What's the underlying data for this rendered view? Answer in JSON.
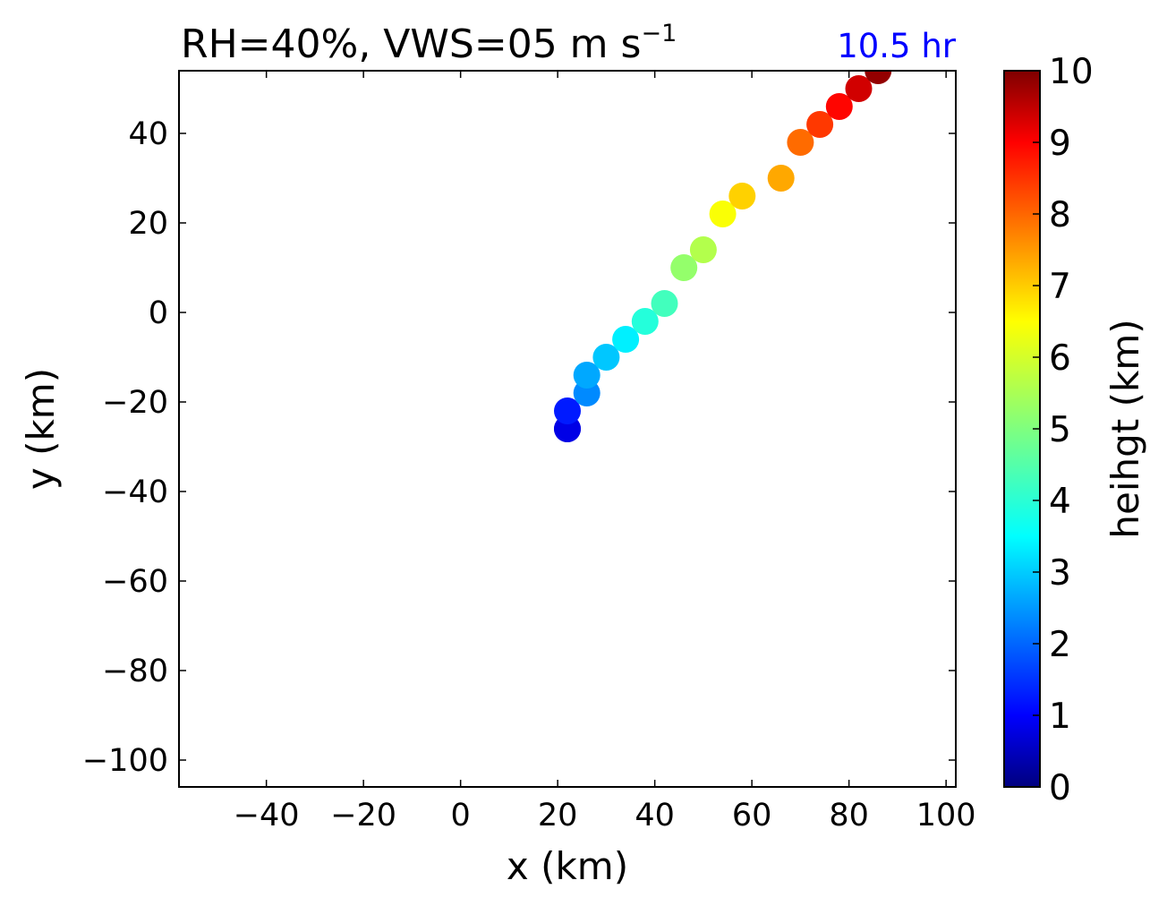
{
  "chart_data": {
    "type": "scatter",
    "title": {
      "main": "RH=40%, VWS=05 m s",
      "superscript": "−1"
    },
    "annotation": {
      "text": "10.5 hr",
      "color": "#0000ff"
    },
    "xlabel": "x (km)",
    "ylabel": "y (km)",
    "xlim": [
      -58,
      102
    ],
    "ylim": [
      -106,
      54
    ],
    "xticks": [
      -40,
      -20,
      0,
      20,
      40,
      60,
      80,
      100
    ],
    "yticks": [
      -100,
      -80,
      -60,
      -40,
      -20,
      0,
      20,
      40
    ],
    "xtick_labels": [
      "−40",
      "−20",
      "0",
      "20",
      "40",
      "60",
      "80",
      "100"
    ],
    "ytick_labels": [
      "−100",
      "−80",
      "−60",
      "−40",
      "−20",
      "0",
      "20",
      "40"
    ],
    "grid": false,
    "colormap": "jet",
    "colorbar": {
      "label": "heihgt (km)",
      "range": [
        0,
        10
      ],
      "ticks": [
        0,
        1,
        2,
        3,
        4,
        5,
        6,
        7,
        8,
        9,
        10
      ],
      "tick_labels": [
        "0",
        "1",
        "2",
        "3",
        "4",
        "5",
        "6",
        "7",
        "8",
        "9",
        "10"
      ]
    },
    "series": [
      {
        "x": [
          22,
          22,
          22,
          26,
          26,
          30,
          34,
          38,
          42,
          46,
          50,
          54,
          58,
          66,
          70,
          74,
          78,
          82,
          86
        ],
        "y": [
          -26,
          -26,
          -22,
          -18,
          -14,
          -10,
          -6,
          -2,
          2,
          10,
          14,
          22,
          26,
          30,
          38,
          42,
          46,
          50,
          54
        ],
        "height_km": [
          0.5,
          1.0,
          1.5,
          2.6,
          2.9,
          3.2,
          3.6,
          4.1,
          4.4,
          5.2,
          5.5,
          6.2,
          6.7,
          7.1,
          7.7,
          8.2,
          8.7,
          9.2,
          9.8
        ]
      }
    ]
  }
}
